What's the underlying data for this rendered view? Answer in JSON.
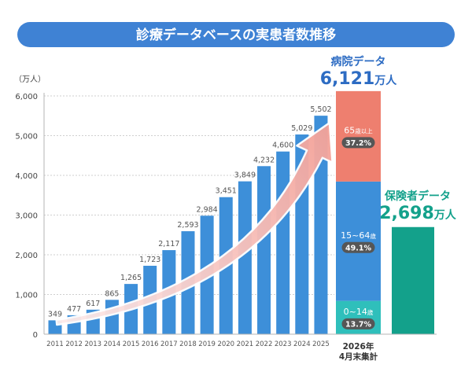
{
  "colors": {
    "title_bg": "#3f82d4",
    "bar": "#3d8fd9",
    "hospital_text": "#2d6cc3",
    "insurance": "#13a18b",
    "badge": "#565656",
    "arrow_start": "#fdeceb",
    "arrow_end": "#f3a198"
  },
  "chart_data": {
    "type": "bar",
    "title": "診療データベースの実患者数推移",
    "xlabel": "",
    "ylabel": "（万人）",
    "ylim": [
      0,
      6000
    ],
    "yticks": [
      0,
      1000,
      2000,
      3000,
      4000,
      5000,
      6000
    ],
    "grid": true,
    "categories": [
      "2011",
      "2012",
      "2013",
      "2014",
      "2015",
      "2016",
      "2017",
      "2018",
      "2019",
      "2020",
      "2021",
      "2022",
      "2023",
      "2024",
      "2025"
    ],
    "values": [
      349,
      477,
      617,
      865,
      1265,
      1723,
      2117,
      2593,
      2984,
      3451,
      3849,
      4232,
      4600,
      5029,
      5502
    ],
    "hospital": {
      "name": "病院データ",
      "total": 6121,
      "total_label": "6,121",
      "unit": "万人",
      "x_label_line1": "2026年",
      "x_label_line2": "4月末集計",
      "segments": [
        {
          "age": "0~14",
          "age_suffix": "歳",
          "share": 13.7,
          "pct_label": "13.7%",
          "color": "#2fbfbb"
        },
        {
          "age": "15~64",
          "age_suffix": "歳",
          "share": 49.1,
          "pct_label": "49.1%",
          "color": "#3d8fd9"
        },
        {
          "age": "65",
          "age_suffix": "歳以上",
          "share": 37.2,
          "pct_label": "37.2%",
          "color": "#ee7f6f"
        }
      ]
    },
    "insurance": {
      "name": "保険者データ",
      "total": 2698,
      "total_label": "2,698",
      "unit": "万人"
    }
  }
}
